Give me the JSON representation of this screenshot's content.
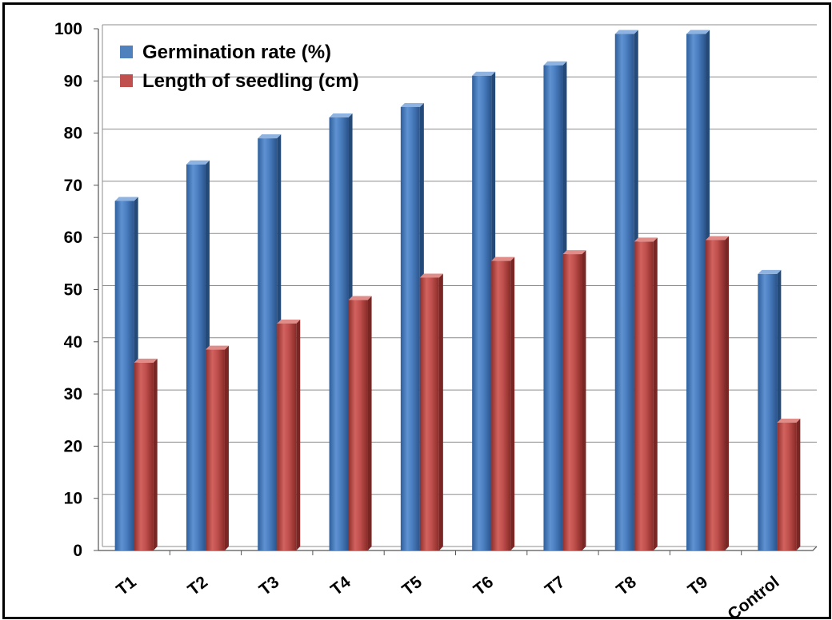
{
  "chart_data": {
    "type": "bar",
    "categories": [
      "T1",
      "T2",
      "T3",
      "T4",
      "T5",
      "T6",
      "T7",
      "T8",
      "T9",
      "Control"
    ],
    "series": [
      {
        "name": "Germination rate (%)",
        "color": "#4F81BD",
        "values": [
          67,
          74,
          79,
          83,
          85,
          91,
          93,
          99,
          99,
          53
        ]
      },
      {
        "name": "Length of seedling (cm)",
        "color": "#C0504D",
        "values": [
          36,
          38.5,
          43.5,
          48,
          52.3,
          55.5,
          56.8,
          59.2,
          59.5,
          24.5
        ]
      }
    ],
    "ylim": [
      0,
      100
    ],
    "yticks": [
      "0",
      "10",
      "20",
      "30",
      "40",
      "50",
      "60",
      "70",
      "80",
      "90",
      "100"
    ],
    "grid": true,
    "legend_position": "top-left"
  }
}
